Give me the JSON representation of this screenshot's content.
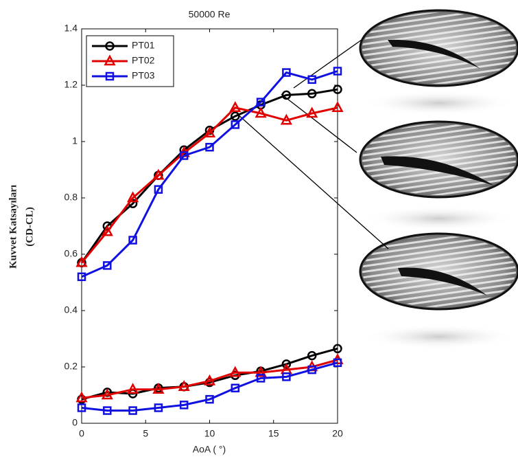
{
  "chart_data": {
    "type": "line",
    "title": "50000 Re",
    "x_label": "AoA ( °)",
    "y_label": [
      "Kuvvet Katsayıları",
      "(CD-CL)"
    ],
    "x": [
      0,
      2,
      4,
      6,
      8,
      10,
      12,
      14,
      16,
      18,
      20
    ],
    "xlim": [
      0,
      20
    ],
    "xticks": [
      0,
      5,
      10,
      15,
      20
    ],
    "ylim": [
      0,
      1.4
    ],
    "yticks": [
      0,
      0.2,
      0.4,
      0.6,
      0.8,
      1,
      1.2,
      1.4
    ],
    "legend": "upper left",
    "series": [
      {
        "name": "PT01",
        "color": "#000000",
        "marker": "circle",
        "cl": [
          0.57,
          0.7,
          0.78,
          0.88,
          0.97,
          1.04,
          1.09,
          1.13,
          1.165,
          1.17,
          1.185
        ],
        "cd": [
          0.085,
          0.11,
          0.105,
          0.125,
          0.13,
          0.145,
          0.17,
          0.185,
          0.21,
          0.24,
          0.265
        ]
      },
      {
        "name": "PT02",
        "color": "#e00000",
        "marker": "triangle",
        "cl": [
          0.57,
          0.68,
          0.8,
          0.88,
          0.96,
          1.03,
          1.12,
          1.1,
          1.075,
          1.1,
          1.12
        ],
        "cd": [
          0.09,
          0.1,
          0.12,
          0.12,
          0.13,
          0.15,
          0.18,
          0.18,
          0.19,
          0.2,
          0.225
        ]
      },
      {
        "name": "PT03",
        "color": "#1010e0",
        "marker": "square",
        "cl": [
          0.52,
          0.56,
          0.65,
          0.83,
          0.95,
          0.98,
          1.06,
          1.14,
          1.245,
          1.22,
          1.25
        ],
        "cd": [
          0.055,
          0.045,
          0.045,
          0.055,
          0.065,
          0.085,
          0.125,
          0.16,
          0.165,
          0.19,
          0.215
        ]
      }
    ]
  }
}
